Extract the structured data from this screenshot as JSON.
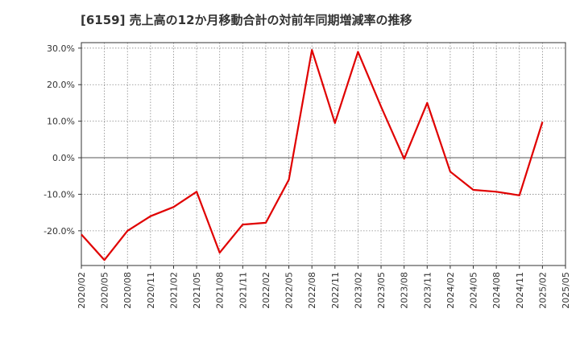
{
  "chart_data": {
    "type": "line",
    "title": "[6159]  売上高の12か月移動合計の対前年同期増減率の推移",
    "xlabel": "",
    "ylabel": "",
    "x": [
      "2020/02",
      "2020/05",
      "2020/08",
      "2020/11",
      "2021/02",
      "2021/05",
      "2021/08",
      "2021/11",
      "2022/02",
      "2022/05",
      "2022/08",
      "2022/11",
      "2023/02",
      "2023/05",
      "2023/08",
      "2023/11",
      "2024/02",
      "2024/05",
      "2024/08",
      "2024/11",
      "2025/02",
      "2025/05"
    ],
    "series": [
      {
        "name": "対前年同期増減率",
        "color": "#e00000",
        "values": [
          -21.0,
          -28.0,
          -20.0,
          -16.0,
          -13.5,
          -9.3,
          -26.0,
          -18.3,
          -17.8,
          -6.0,
          29.5,
          9.5,
          29.0,
          14.0,
          -0.3,
          15.0,
          -3.8,
          -8.8,
          -9.3,
          -10.3,
          9.8,
          null
        ]
      }
    ],
    "yticks": [
      30,
      20,
      10,
      0,
      -10,
      -20
    ],
    "ytick_labels": [
      "30.0%",
      "20.0%",
      "10.0%",
      "0.0%",
      "-10.0%",
      "-20.0%"
    ],
    "ylim": [
      -29.5,
      31.5
    ],
    "grid": true,
    "zero_line": true
  }
}
